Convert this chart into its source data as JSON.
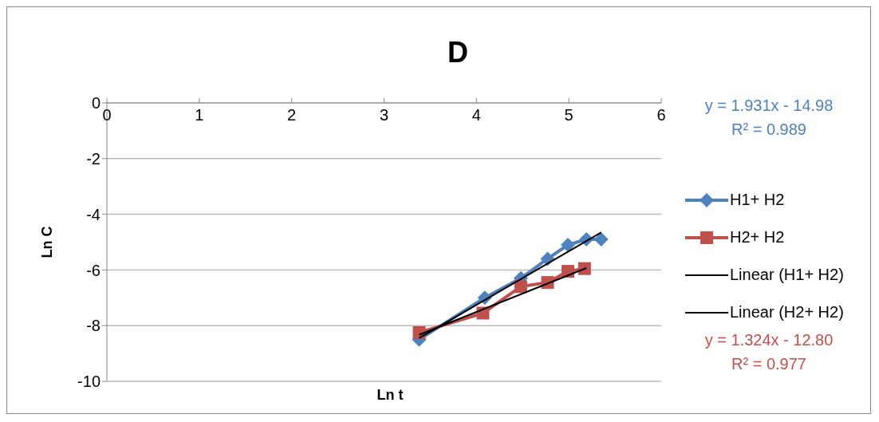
{
  "chart_data": {
    "type": "line",
    "title": "D",
    "xlabel": "Ln t",
    "ylabel": "Ln C",
    "xlim": [
      0,
      6
    ],
    "xticks": [
      0,
      1,
      2,
      3,
      4,
      5,
      6
    ],
    "ylim": [
      -10,
      0
    ],
    "yticks": [
      -10,
      -8,
      -6,
      -4,
      -2,
      0
    ],
    "grid": "y",
    "legend": "right",
    "series": [
      {
        "name": "H1+ H2",
        "color": "#4f81bd",
        "marker": "diamond",
        "x": [
          3.38,
          4.09,
          4.48,
          4.77,
          4.99,
          5.19,
          5.35
        ],
        "values": [
          -8.5,
          -7.0,
          -6.3,
          -5.6,
          -5.1,
          -4.9,
          -4.9
        ]
      },
      {
        "name": "H2+ H2",
        "color": "#c0504d",
        "marker": "square",
        "x": [
          3.38,
          4.07,
          4.48,
          4.77,
          4.99,
          5.17
        ],
        "values": [
          -8.25,
          -7.55,
          -6.6,
          -6.45,
          -6.05,
          -5.95
        ]
      },
      {
        "name": "Linear (H1+ H2)",
        "color": "#000000",
        "marker": "none",
        "x": [
          3.38,
          5.35
        ],
        "values": [
          -8.45,
          -4.65
        ]
      },
      {
        "name": "Linear (H2+ H2)",
        "color": "#000000",
        "marker": "none",
        "x": [
          3.38,
          5.19
        ],
        "values": [
          -8.33,
          -5.93
        ]
      }
    ],
    "annotations": [
      "y = 1.931x - 14.98\nR² = 0.989",
      "y = 1.324x - 12.80\nR² = 0.977"
    ]
  }
}
